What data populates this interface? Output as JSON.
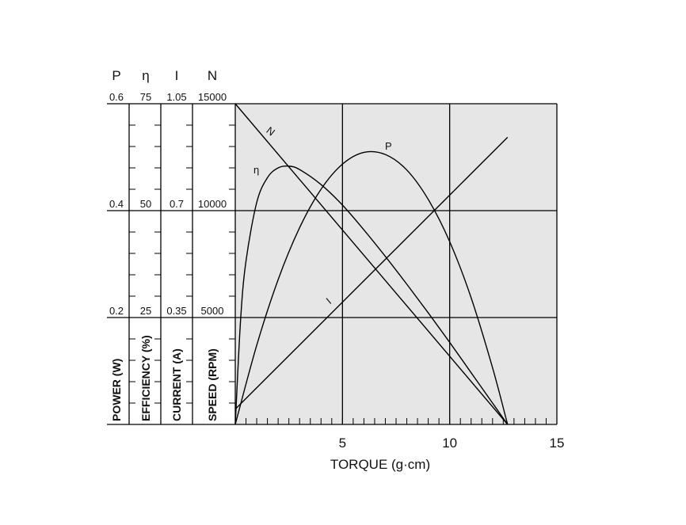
{
  "chart_data": {
    "type": "line",
    "x_label": "TORQUE (g·cm)",
    "xlim": [
      0,
      15
    ],
    "xticks": [
      5,
      10,
      15
    ],
    "grid": true,
    "axes": [
      {
        "symbol": "P",
        "title": "POWER (W)",
        "ylim": [
          0,
          0.6
        ],
        "yticks": [
          0.2,
          0.4,
          0.6
        ]
      },
      {
        "symbol": "η",
        "title": "EFFICIENCY (%)",
        "ylim": [
          0,
          75
        ],
        "yticks": [
          25,
          50,
          75
        ]
      },
      {
        "symbol": "I",
        "title": "CURRENT (A)",
        "ylim": [
          0,
          1.05
        ],
        "yticks": [
          0.35,
          0.7,
          1.05
        ]
      },
      {
        "symbol": "N",
        "title": "SPEED (RPM)",
        "ylim": [
          0,
          15000
        ],
        "yticks": [
          5000,
          10000,
          15000
        ]
      }
    ],
    "series": [
      {
        "name": "N",
        "color": "#000000",
        "x": [
          0,
          12.7
        ],
        "values": [
          15000,
          0
        ]
      },
      {
        "name": "I",
        "color": "#000000",
        "x": [
          0,
          12.7
        ],
        "values": [
          0.05,
          0.94
        ]
      },
      {
        "name": "P",
        "color": "#000000",
        "x": [
          0,
          1,
          2,
          3,
          4,
          5,
          6,
          7,
          8,
          9,
          10,
          11,
          12,
          12.7
        ],
        "values": [
          0,
          0.148,
          0.271,
          0.368,
          0.44,
          0.487,
          0.509,
          0.505,
          0.476,
          0.421,
          0.342,
          0.237,
          0.106,
          0
        ]
      },
      {
        "name": "η",
        "color": "#000000",
        "x": [
          0,
          0.25,
          0.5,
          1,
          1.5,
          2,
          2.5,
          3,
          4,
          5,
          6,
          7,
          8,
          9,
          10,
          11,
          12,
          12.7
        ],
        "values": [
          0,
          24.6,
          38.2,
          51.9,
          57.7,
          60,
          60.4,
          59.6,
          56.1,
          51.3,
          45.5,
          39.3,
          32.8,
          26.1,
          19.2,
          12.1,
          5,
          0
        ]
      }
    ]
  }
}
